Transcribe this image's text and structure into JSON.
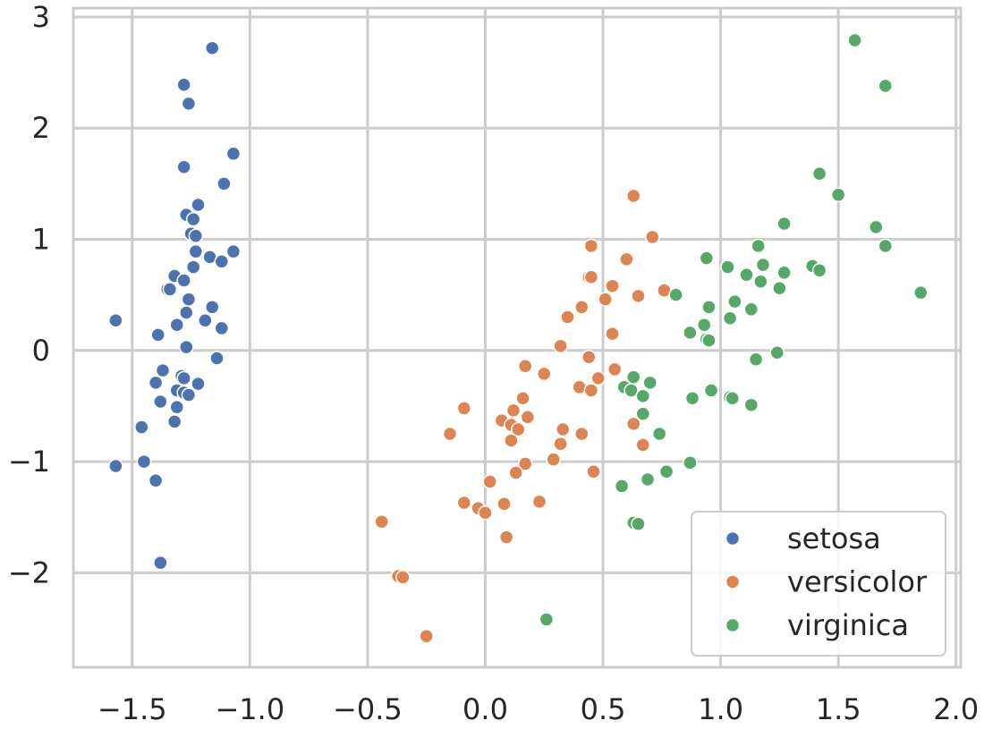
{
  "chart_data": {
    "type": "scatter",
    "title": "",
    "xlabel": "",
    "ylabel": "",
    "xlim": [
      -1.75,
      2.02
    ],
    "ylim": [
      -2.85,
      3.08
    ],
    "xticks": [
      -1.5,
      -1.0,
      -0.5,
      0.0,
      0.5,
      1.0,
      1.5,
      2.0
    ],
    "xtick_labels": [
      "−1.5",
      "−1.0",
      "−0.5",
      "0.0",
      "0.5",
      "1.0",
      "1.5",
      "2.0"
    ],
    "yticks": [
      -2,
      -1,
      0,
      1,
      2,
      3
    ],
    "ytick_labels": [
      "−2",
      "−1",
      "0",
      "1",
      "2",
      "3"
    ],
    "grid": true,
    "legend": {
      "placement": "bottom-right"
    },
    "series": [
      {
        "name": "setosa",
        "color": "#4c72b0",
        "points": [
          [
            -1.16,
            2.72
          ],
          [
            -1.28,
            2.39
          ],
          [
            -1.26,
            2.22
          ],
          [
            -1.28,
            1.65
          ],
          [
            -1.07,
            1.77
          ],
          [
            -1.11,
            1.5
          ],
          [
            -1.22,
            1.31
          ],
          [
            -1.27,
            1.22
          ],
          [
            -1.24,
            1.18
          ],
          [
            -1.25,
            1.05
          ],
          [
            -1.23,
            1.03
          ],
          [
            -1.23,
            0.89
          ],
          [
            -1.07,
            0.89
          ],
          [
            -1.17,
            0.84
          ],
          [
            -1.12,
            0.8
          ],
          [
            -1.24,
            0.75
          ],
          [
            -1.32,
            0.67
          ],
          [
            -1.28,
            0.63
          ],
          [
            -1.35,
            0.55
          ],
          [
            -1.34,
            0.55
          ],
          [
            -1.26,
            0.46
          ],
          [
            -1.16,
            0.39
          ],
          [
            -1.27,
            0.34
          ],
          [
            -1.19,
            0.27
          ],
          [
            -1.57,
            0.27
          ],
          [
            -1.31,
            0.23
          ],
          [
            -1.12,
            0.2
          ],
          [
            -1.39,
            0.14
          ],
          [
            -1.27,
            0.03
          ],
          [
            -1.14,
            -0.07
          ],
          [
            -1.37,
            -0.18
          ],
          [
            -1.29,
            -0.23
          ],
          [
            -1.28,
            -0.25
          ],
          [
            -1.4,
            -0.29
          ],
          [
            -1.22,
            -0.3
          ],
          [
            -1.31,
            -0.36
          ],
          [
            -1.28,
            -0.38
          ],
          [
            -1.26,
            -0.4
          ],
          [
            -1.38,
            -0.46
          ],
          [
            -1.31,
            -0.51
          ],
          [
            -1.32,
            -0.64
          ],
          [
            -1.46,
            -0.69
          ],
          [
            -1.45,
            -1.0
          ],
          [
            -1.57,
            -1.04
          ],
          [
            -1.4,
            -1.17
          ],
          [
            -1.38,
            -1.91
          ]
        ]
      },
      {
        "name": "versicolor",
        "color": "#dd8452",
        "points": [
          [
            0.63,
            1.39
          ],
          [
            0.71,
            1.02
          ],
          [
            0.45,
            0.94
          ],
          [
            0.6,
            0.82
          ],
          [
            0.44,
            0.66
          ],
          [
            0.45,
            0.66
          ],
          [
            0.54,
            0.58
          ],
          [
            0.76,
            0.54
          ],
          [
            0.65,
            0.49
          ],
          [
            0.51,
            0.46
          ],
          [
            0.41,
            0.39
          ],
          [
            0.35,
            0.3
          ],
          [
            0.54,
            0.15
          ],
          [
            0.32,
            0.04
          ],
          [
            0.44,
            -0.06
          ],
          [
            0.17,
            -0.14
          ],
          [
            0.55,
            -0.17
          ],
          [
            0.25,
            -0.21
          ],
          [
            0.48,
            -0.25
          ],
          [
            0.4,
            -0.33
          ],
          [
            0.45,
            -0.36
          ],
          [
            0.16,
            -0.43
          ],
          [
            -0.09,
            -0.52
          ],
          [
            0.12,
            -0.54
          ],
          [
            0.07,
            -0.63
          ],
          [
            0.18,
            -0.6
          ],
          [
            0.11,
            -0.67
          ],
          [
            0.63,
            -0.66
          ],
          [
            0.14,
            -0.71
          ],
          [
            0.33,
            -0.71
          ],
          [
            -0.15,
            -0.75
          ],
          [
            0.41,
            -0.75
          ],
          [
            0.11,
            -0.81
          ],
          [
            0.32,
            -0.84
          ],
          [
            0.67,
            -0.85
          ],
          [
            0.29,
            -0.98
          ],
          [
            0.17,
            -1.02
          ],
          [
            0.13,
            -1.1
          ],
          [
            0.46,
            -1.09
          ],
          [
            0.02,
            -1.18
          ],
          [
            0.23,
            -1.36
          ],
          [
            -0.09,
            -1.37
          ],
          [
            0.08,
            -1.38
          ],
          [
            -0.03,
            -1.42
          ],
          [
            0.0,
            -1.46
          ],
          [
            0.09,
            -1.68
          ],
          [
            -0.44,
            -1.54
          ],
          [
            -0.37,
            -2.03
          ],
          [
            -0.35,
            -2.04
          ],
          [
            -0.25,
            -2.57
          ]
        ]
      },
      {
        "name": "virginica",
        "color": "#55a868",
        "points": [
          [
            1.57,
            2.79
          ],
          [
            1.7,
            2.38
          ],
          [
            1.42,
            1.59
          ],
          [
            1.5,
            1.4
          ],
          [
            1.27,
            1.14
          ],
          [
            1.66,
            1.11
          ],
          [
            1.16,
            0.94
          ],
          [
            1.7,
            0.94
          ],
          [
            0.94,
            0.83
          ],
          [
            1.18,
            0.77
          ],
          [
            1.03,
            0.75
          ],
          [
            1.39,
            0.76
          ],
          [
            1.42,
            0.72
          ],
          [
            1.11,
            0.68
          ],
          [
            1.27,
            0.7
          ],
          [
            1.17,
            0.62
          ],
          [
            1.25,
            0.56
          ],
          [
            1.85,
            0.52
          ],
          [
            0.81,
            0.5
          ],
          [
            1.06,
            0.44
          ],
          [
            0.95,
            0.39
          ],
          [
            1.13,
            0.37
          ],
          [
            1.04,
            0.29
          ],
          [
            0.93,
            0.23
          ],
          [
            0.87,
            0.16
          ],
          [
            0.94,
            0.1
          ],
          [
            0.95,
            0.09
          ],
          [
            1.15,
            -0.08
          ],
          [
            1.24,
            -0.02
          ],
          [
            0.63,
            -0.24
          ],
          [
            0.7,
            -0.29
          ],
          [
            0.59,
            -0.33
          ],
          [
            0.62,
            -0.36
          ],
          [
            0.96,
            -0.36
          ],
          [
            0.67,
            -0.41
          ],
          [
            1.04,
            -0.42
          ],
          [
            1.05,
            -0.43
          ],
          [
            0.88,
            -0.43
          ],
          [
            1.13,
            -0.49
          ],
          [
            0.67,
            -0.57
          ],
          [
            0.74,
            -0.75
          ],
          [
            0.87,
            -1.01
          ],
          [
            0.77,
            -1.09
          ],
          [
            0.69,
            -1.16
          ],
          [
            0.58,
            -1.22
          ],
          [
            0.63,
            -1.55
          ],
          [
            0.65,
            -1.56
          ],
          [
            0.26,
            -2.42
          ]
        ]
      }
    ]
  }
}
